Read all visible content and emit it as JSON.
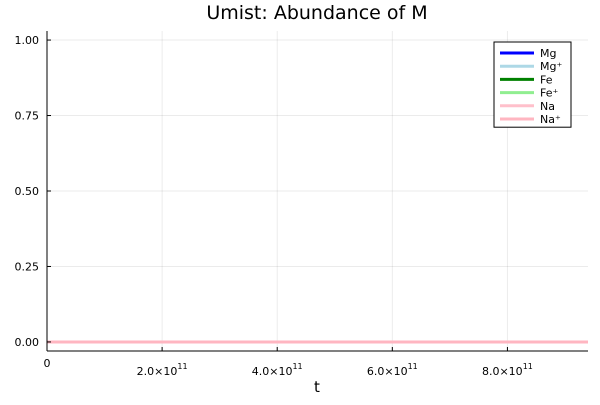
{
  "chart_data": {
    "type": "line",
    "title": "Umist: Abundance of M",
    "xlabel": "t",
    "ylabel": "",
    "xlim": [
      0,
      940000000000.0
    ],
    "ylim": [
      -0.03,
      1.03
    ],
    "grid": true,
    "legend_position": "top-right",
    "x_ticks": [
      {
        "value": 0,
        "label": "0"
      },
      {
        "value": 200000000000.0,
        "label": "2.0×10",
        "exp": "11"
      },
      {
        "value": 400000000000.0,
        "label": "4.0×10",
        "exp": "11"
      },
      {
        "value": 600000000000.0,
        "label": "6.0×10",
        "exp": "11"
      },
      {
        "value": 800000000000.0,
        "label": "8.0×10",
        "exp": "11"
      }
    ],
    "y_ticks": [
      {
        "value": 0,
        "label": "0.00"
      },
      {
        "value": 0.25,
        "label": "0.25"
      },
      {
        "value": 0.5,
        "label": "0.50"
      },
      {
        "value": 0.75,
        "label": "0.75"
      },
      {
        "value": 1.0,
        "label": "1.00"
      }
    ],
    "series": [
      {
        "name": "Mg",
        "color": "#0000ff",
        "x": [
          0,
          940000000000.0
        ],
        "y": [
          0,
          0
        ]
      },
      {
        "name": "Mg⁺",
        "color": "#add8e6",
        "x": [
          0,
          940000000000.0
        ],
        "y": [
          0,
          0
        ]
      },
      {
        "name": "Fe",
        "color": "#008000",
        "x": [
          0,
          940000000000.0
        ],
        "y": [
          0,
          0
        ]
      },
      {
        "name": "Fe⁺",
        "color": "#90ee90",
        "x": [
          0,
          940000000000.0
        ],
        "y": [
          0,
          0
        ]
      },
      {
        "name": "Na",
        "color": "#ffc0cb",
        "x": [
          0,
          940000000000.0
        ],
        "y": [
          0,
          0
        ]
      },
      {
        "name": "Na⁺",
        "color": "#ffb6c1",
        "x": [
          0,
          940000000000.0
        ],
        "y": [
          0,
          0
        ]
      }
    ]
  }
}
